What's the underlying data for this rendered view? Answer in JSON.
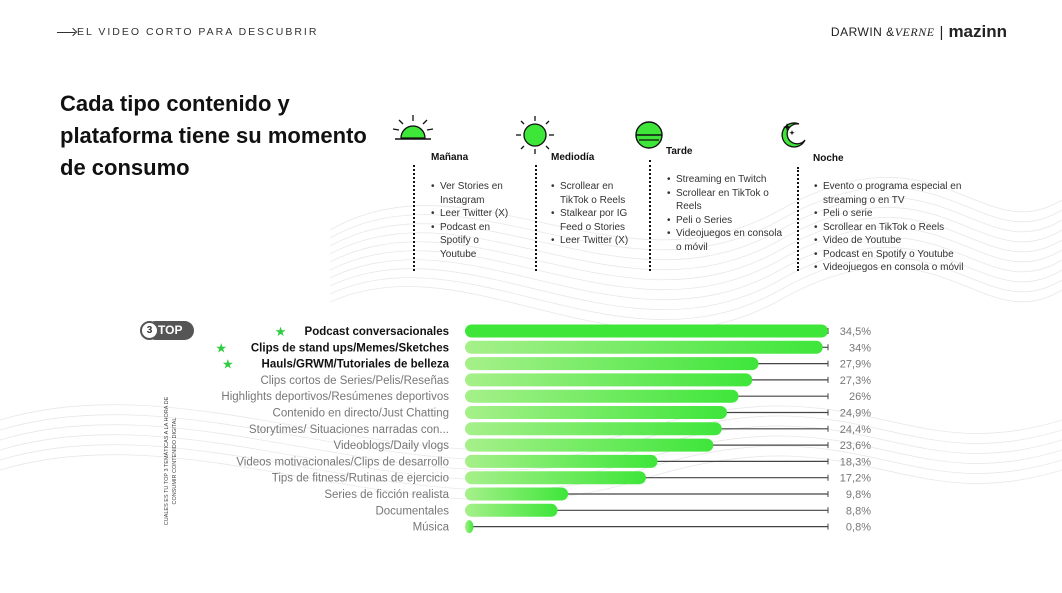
{
  "header": {
    "section_label": "EL VIDEO CORTO PARA DESCUBRIR",
    "brand_left": "DARWIN &",
    "brand_left_italic": "VERNE",
    "brand_separator": "|",
    "brand_right": "mazinn"
  },
  "headline": "Cada tipo contenido y plataforma tiene su momento de consumo",
  "moments": [
    {
      "icon": "sunrise-icon",
      "title": "Mañana",
      "items": [
        "Ver Stories en Instagram",
        "Leer Twitter (X)",
        "Podcast en Spotify o Youtube"
      ]
    },
    {
      "icon": "sun-icon",
      "title": "Mediodía",
      "items": [
        "Scrollear en TikTok o Reels",
        "Stalkear por IG Feed o Stories",
        "Leer Twitter (X)"
      ]
    },
    {
      "icon": "sunset-icon",
      "title": "Tarde",
      "items": [
        "Streaming en Twitch",
        "Scrollear en TikTok o Reels",
        "Peli o Series",
        "Videojuegos en consola o móvil"
      ]
    },
    {
      "icon": "moon-icon",
      "title": "Noche",
      "items": [
        "Evento o programa especial en streaming o en TV",
        "Peli o serie",
        "Scrollear en TikTok o Reels",
        "Video de Youtube",
        "Podcast en Spotify o Youtube",
        "Videojuegos en consola o móvil"
      ]
    }
  ],
  "top_badge": {
    "number": "3",
    "label": "TOP"
  },
  "side_label": "CUALES ES TU TOP 3 TEMÁTICAS A LA HORA DE CONSUMIR CONTENIDO DIGITAL",
  "colors": {
    "accent": "#3ee63a",
    "accent_light": "#a6f08a",
    "track": "#444444",
    "star": "#2ecc40"
  },
  "chart_data": {
    "type": "bar",
    "orientation": "horizontal",
    "categories": [
      "Podcast conversacionales",
      "Clips de stand ups/Memes/Sketches",
      "Hauls/GRWM/Tutoriales de belleza",
      "Clips cortos de Series/Pelis/Reseñas",
      "Highlights deportivos/Resúmenes deportivos",
      "Contenido en directo/Just Chatting",
      "Storytimes/ Situaciones narradas con...",
      "Videoblogs/Daily vlogs",
      "Videos motivacionales/Clips de desarrollo",
      "Tips de fitness/Rutinas de ejercicio",
      "Series de ficción realista",
      "Documentales",
      "Música"
    ],
    "values": [
      34.5,
      34,
      27.9,
      27.3,
      26,
      24.9,
      24.4,
      23.6,
      18.3,
      17.2,
      9.8,
      8.8,
      0.8
    ],
    "value_labels": [
      "34,5%",
      "34%",
      "27,9%",
      "27,3%",
      "26%",
      "24,9%",
      "24,4%",
      "23,6%",
      "18,3%",
      "17,2%",
      "9,8%",
      "8,8%",
      "0,8%"
    ],
    "highlighted_top": 3,
    "xlim": [
      0,
      34.5
    ]
  }
}
